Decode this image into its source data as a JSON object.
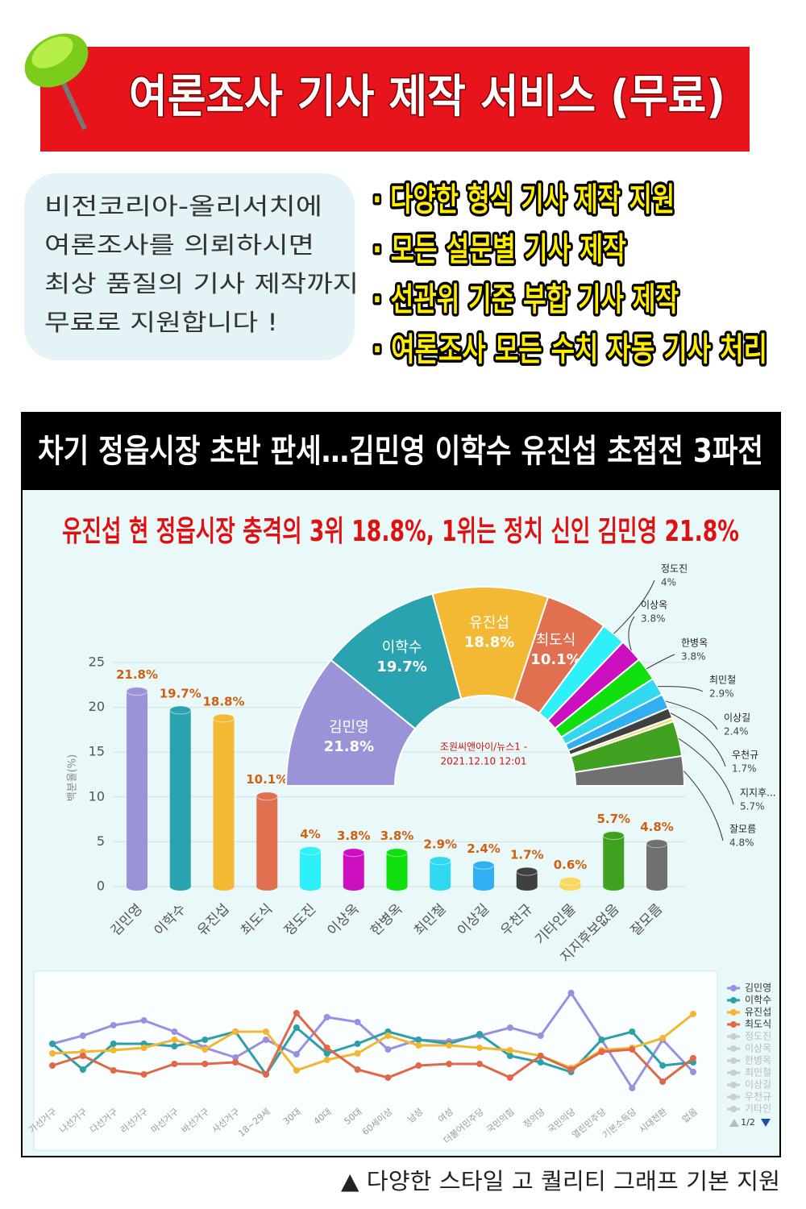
{
  "banner": {
    "title": "여론조사 기사 제작 서비스 (무료)"
  },
  "intro": {
    "lines": [
      "비전코리아-올리서치에",
      "여론조사를 의뢰하시면",
      "최상 품질의 기사 제작까지",
      "무료로 지원합니다 !"
    ]
  },
  "features": [
    "· 다양한 형식 기사 제작 지원",
    "· 모든 설문별 기사 제작",
    "· 선관위 기준 부합 기사 제작",
    "· 여론조사 모든 수치 자동 기사 처리"
  ],
  "article": {
    "title": "차기 정읍시장 초반 판세…김민영 이학수 유진섭 초접전 3파전",
    "headline": "유진섭 현 정읍시장 충격의 3위 18.8%, 1위는 정치 신인 김민영 21.8%"
  },
  "caption": "▲ 다양한 스타일  고 퀄리티 그래프 기본 지원",
  "chart_data": [
    {
      "type": "bar",
      "ylabel": "백분율(%)",
      "categories": [
        "김민영",
        "이학수",
        "유진섭",
        "최도식",
        "정도진",
        "이상옥",
        "한병옥",
        "최민철",
        "이상길",
        "우천규",
        "기타인물",
        "지지후보없음",
        "잘모름"
      ],
      "values": [
        21.8,
        19.7,
        18.8,
        10.1,
        4,
        3.8,
        3.8,
        2.9,
        2.4,
        1.7,
        0.6,
        5.7,
        4.8
      ],
      "value_labels": [
        "21.8%",
        "19.7%",
        "18.8%",
        "10.1%",
        "4%",
        "3.8%",
        "3.8%",
        "2.9%",
        "2.4%",
        "1.7%",
        "0.6%",
        "5.7%",
        "4.8%"
      ],
      "colors": [
        "#9a93d8",
        "#2aa3b0",
        "#f3b935",
        "#e07050",
        "#2ef0f8",
        "#cc10c0",
        "#10e010",
        "#30d8f0",
        "#30b0f0",
        "#404040",
        "#f8d860",
        "#40a020",
        "#707070"
      ],
      "ylim": [
        0,
        25
      ],
      "yticks": [
        0,
        5,
        10,
        15,
        20,
        25
      ],
      "grid": true
    },
    {
      "type": "pie",
      "shape": "half-donut",
      "categories": [
        "김민영",
        "이학수",
        "유진섭",
        "최도식",
        "정도진",
        "이상옥",
        "한병옥",
        "최민철",
        "이상길",
        "우천규",
        null,
        "지지후...",
        "잘모름"
      ],
      "values": [
        21.8,
        19.7,
        18.8,
        10.1,
        4,
        3.8,
        3.8,
        2.9,
        2.4,
        1.7,
        0.6,
        5.7,
        4.8
      ],
      "value_labels": [
        "21.8%",
        "19.7%",
        "18.8%",
        "10.1%",
        "4%",
        "3.8%",
        "3.8%",
        "2.9%",
        "2.4%",
        "1.7%",
        null,
        "5.7%",
        "4.8%"
      ],
      "colors": [
        "#9a93d8",
        "#2aa3b0",
        "#f3b935",
        "#e07050",
        "#2ef0f8",
        "#cc10c0",
        "#10e010",
        "#30d8f0",
        "#30b0f0",
        "#404040",
        "#f8d860",
        "#40a020",
        "#707070"
      ],
      "note_lines": [
        "조원씨앤아이/뉴스1 -",
        "2021.12.10 12:01"
      ]
    },
    {
      "type": "line",
      "categories": [
        "가선거구",
        "나선거구",
        "다선거구",
        "라선거구",
        "마선거구",
        "바선거구",
        "사선거구",
        "18~29세",
        "30대",
        "40대",
        "50대",
        "60세이상",
        "남성",
        "여성",
        "더불어민주당",
        "국민의힘",
        "정의당",
        "국민의당",
        "열린민주당",
        "기본소득당",
        "시대전환",
        "없음"
      ],
      "series": [
        {
          "name": "김민영",
          "color": "#9a8fe0",
          "values": [
            19.5,
            22.5,
            26.4,
            28.2,
            24,
            18,
            14.4,
            21,
            15.6,
            29.4,
            27.6,
            17.4,
            21,
            20.4,
            22.5,
            25.5,
            22.5,
            38.4,
            21,
            3,
            21,
            9
          ]
        },
        {
          "name": "이학수",
          "color": "#2aa0a8",
          "values": [
            19.5,
            9.9,
            19.5,
            19.5,
            18.6,
            21,
            24,
            8.1,
            25.5,
            15.9,
            19.5,
            24,
            21,
            19.5,
            23.1,
            15,
            12.6,
            9,
            21,
            24,
            11.4,
            12.6
          ]
        },
        {
          "name": "유진섭",
          "color": "#f2b632",
          "values": [
            15.9,
            16.5,
            17.1,
            18,
            21,
            17.4,
            24,
            24,
            9.6,
            13.5,
            15.9,
            22.5,
            18.9,
            18.9,
            18,
            17.1,
            15,
            10.5,
            17.1,
            18,
            21.6,
            30.6
          ]
        },
        {
          "name": "최도식",
          "color": "#e06848",
          "values": [
            11.4,
            15,
            9.6,
            8.1,
            12,
            12,
            12.6,
            8.1,
            30.9,
            18,
            9.9,
            6.9,
            11.4,
            12,
            12,
            6.9,
            15,
            9.9,
            16.5,
            17.4,
            5.4,
            14.1
          ]
        }
      ],
      "legend_inactive": [
        "정도진",
        "이상옥",
        "한병옥",
        "최민철",
        "이상길",
        "우천규",
        "기타인"
      ],
      "legend": "right",
      "legend_page": "1/2",
      "ylim": [
        0,
        45
      ]
    }
  ]
}
